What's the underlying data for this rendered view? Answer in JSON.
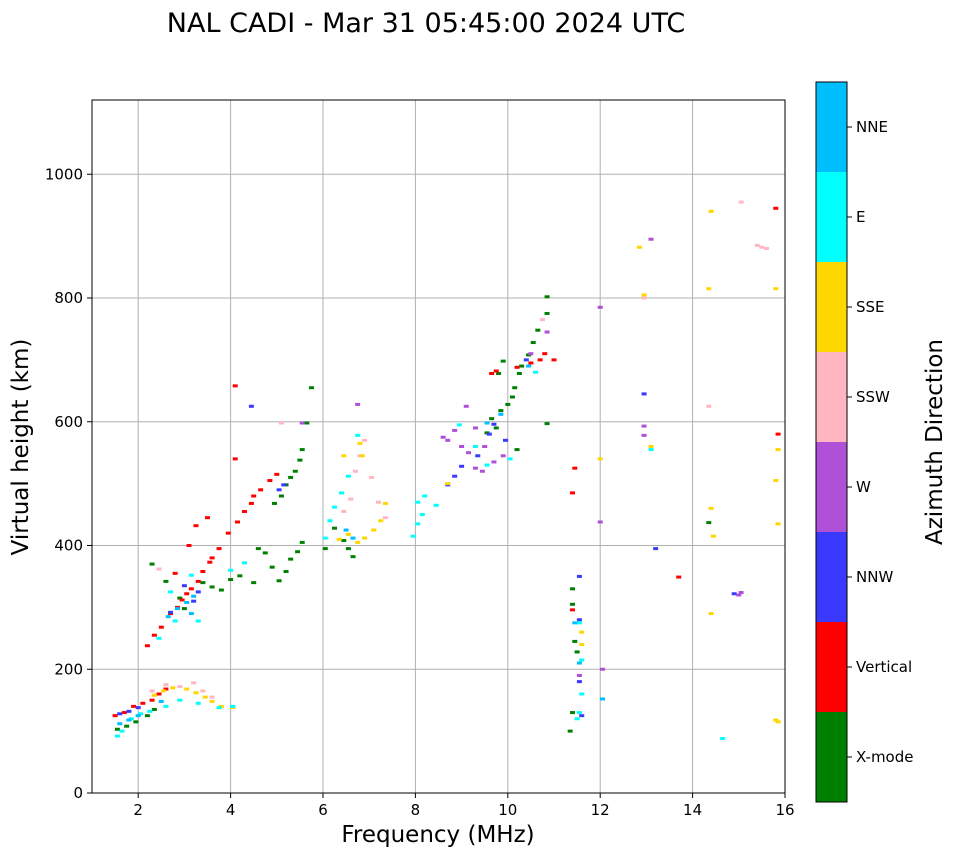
{
  "chart_data": {
    "type": "scatter",
    "title": "NAL CADI - Mar 31 05:45:00 2024 UTC",
    "xlabel": "Frequency (MHz)",
    "ylabel": "Virtual height (km)",
    "xlim": [
      1,
      16
    ],
    "ylim": [
      0,
      1120
    ],
    "xticks": [
      2,
      4,
      6,
      8,
      10,
      12,
      14,
      16
    ],
    "yticks": [
      0,
      200,
      400,
      600,
      800,
      1000
    ],
    "grid": true,
    "colorbar": {
      "label": "Azimuth Direction",
      "categories": [
        "X-mode",
        "Vertical",
        "NNW",
        "W",
        "SSW",
        "SSE",
        "E",
        "NNE"
      ],
      "colors": [
        "#008000",
        "#ff0000",
        "#3a3aff",
        "#b050d8",
        "#ffb6c1",
        "#ffd700",
        "#00ffff",
        "#00bfff"
      ]
    },
    "series": [
      {
        "name": "X-mode",
        "points": [
          [
            1.55,
            103
          ],
          [
            1.75,
            108
          ],
          [
            1.95,
            115
          ],
          [
            2.2,
            125
          ],
          [
            2.35,
            135
          ],
          [
            2.3,
            370
          ],
          [
            2.6,
            342
          ],
          [
            2.9,
            315
          ],
          [
            3.0,
            298
          ],
          [
            3.4,
            340
          ],
          [
            3.6,
            333
          ],
          [
            3.8,
            328
          ],
          [
            4.0,
            345
          ],
          [
            4.2,
            351
          ],
          [
            4.5,
            340
          ],
          [
            4.6,
            395
          ],
          [
            4.75,
            388
          ],
          [
            4.9,
            365
          ],
          [
            5.05,
            343
          ],
          [
            5.2,
            358
          ],
          [
            5.3,
            378
          ],
          [
            5.45,
            390
          ],
          [
            5.55,
            405
          ],
          [
            4.95,
            468
          ],
          [
            5.1,
            480
          ],
          [
            5.2,
            498
          ],
          [
            5.3,
            510
          ],
          [
            5.4,
            520
          ],
          [
            5.5,
            538
          ],
          [
            5.55,
            555
          ],
          [
            5.65,
            598
          ],
          [
            5.75,
            655
          ],
          [
            6.05,
            395
          ],
          [
            6.25,
            428
          ],
          [
            6.45,
            408
          ],
          [
            6.55,
            395
          ],
          [
            6.65,
            382
          ],
          [
            9.55,
            582
          ],
          [
            9.65,
            605
          ],
          [
            9.75,
            590
          ],
          [
            9.85,
            618
          ],
          [
            10.0,
            628
          ],
          [
            10.1,
            640
          ],
          [
            10.15,
            655
          ],
          [
            10.25,
            678
          ],
          [
            10.3,
            690
          ],
          [
            10.45,
            708
          ],
          [
            10.55,
            728
          ],
          [
            10.65,
            748
          ],
          [
            10.85,
            775
          ],
          [
            10.85,
            802
          ],
          [
            9.8,
            678
          ],
          [
            9.9,
            698
          ],
          [
            10.2,
            555
          ],
          [
            10.85,
            597
          ],
          [
            11.4,
            305
          ],
          [
            11.45,
            245
          ],
          [
            11.5,
            228
          ],
          [
            11.4,
            130
          ],
          [
            11.35,
            100
          ],
          [
            11.4,
            330
          ],
          [
            14.35,
            437
          ]
        ]
      },
      {
        "name": "Vertical",
        "points": [
          [
            1.5,
            125
          ],
          [
            1.7,
            130
          ],
          [
            1.9,
            140
          ],
          [
            2.1,
            145
          ],
          [
            2.3,
            150
          ],
          [
            2.45,
            160
          ],
          [
            2.6,
            168
          ],
          [
            2.2,
            238
          ],
          [
            2.35,
            255
          ],
          [
            2.5,
            268
          ],
          [
            2.7,
            290
          ],
          [
            2.85,
            300
          ],
          [
            2.95,
            312
          ],
          [
            3.05,
            322
          ],
          [
            3.15,
            330
          ],
          [
            3.3,
            342
          ],
          [
            3.4,
            358
          ],
          [
            3.55,
            373
          ],
          [
            3.6,
            380
          ],
          [
            3.75,
            395
          ],
          [
            3.95,
            420
          ],
          [
            4.15,
            438
          ],
          [
            4.3,
            455
          ],
          [
            4.45,
            468
          ],
          [
            4.5,
            480
          ],
          [
            4.65,
            490
          ],
          [
            4.85,
            505
          ],
          [
            5.0,
            515
          ],
          [
            4.1,
            540
          ],
          [
            4.1,
            658
          ],
          [
            3.25,
            432
          ],
          [
            3.5,
            445
          ],
          [
            3.1,
            400
          ],
          [
            2.8,
            355
          ],
          [
            9.65,
            678
          ],
          [
            9.75,
            682
          ],
          [
            10.2,
            688
          ],
          [
            10.5,
            695
          ],
          [
            10.7,
            700
          ],
          [
            10.8,
            710
          ],
          [
            11.0,
            700
          ],
          [
            11.4,
            485
          ],
          [
            11.45,
            525
          ],
          [
            11.4,
            296
          ],
          [
            13.7,
            349
          ],
          [
            15.8,
            945
          ],
          [
            15.85,
            580
          ]
        ]
      },
      {
        "name": "NNW",
        "points": [
          [
            1.6,
            128
          ],
          [
            1.8,
            132
          ],
          [
            2.0,
            138
          ],
          [
            2.7,
            292
          ],
          [
            3.0,
            335
          ],
          [
            3.2,
            310
          ],
          [
            3.3,
            325
          ],
          [
            5.05,
            490
          ],
          [
            5.15,
            498
          ],
          [
            8.7,
            498
          ],
          [
            8.85,
            512
          ],
          [
            9.0,
            528
          ],
          [
            9.35,
            545
          ],
          [
            9.6,
            580
          ],
          [
            9.7,
            596
          ],
          [
            9.95,
            570
          ],
          [
            10.4,
            700
          ],
          [
            11.55,
            350
          ],
          [
            11.55,
            280
          ],
          [
            11.55,
            180
          ],
          [
            11.6,
            125
          ],
          [
            12.95,
            645
          ],
          [
            13.2,
            395
          ],
          [
            14.9,
            322
          ],
          [
            4.45,
            625
          ]
        ]
      },
      {
        "name": "W",
        "points": [
          [
            8.7,
            570
          ],
          [
            8.85,
            586
          ],
          [
            9.0,
            560
          ],
          [
            9.15,
            550
          ],
          [
            9.3,
            525
          ],
          [
            9.45,
            520
          ],
          [
            9.1,
            625
          ],
          [
            8.6,
            575
          ],
          [
            9.3,
            590
          ],
          [
            9.5,
            560
          ],
          [
            9.7,
            535
          ],
          [
            9.9,
            545
          ],
          [
            10.5,
            710
          ],
          [
            10.85,
            745
          ],
          [
            11.55,
            190
          ],
          [
            12.0,
            438
          ],
          [
            12.0,
            785
          ],
          [
            12.05,
            200
          ],
          [
            12.95,
            578
          ],
          [
            12.95,
            593
          ],
          [
            13.1,
            895
          ],
          [
            15.0,
            320
          ],
          [
            15.05,
            324
          ],
          [
            6.75,
            628
          ],
          [
            5.55,
            598
          ]
        ]
      },
      {
        "name": "SSW",
        "points": [
          [
            2.3,
            165
          ],
          [
            2.6,
            175
          ],
          [
            2.9,
            172
          ],
          [
            3.2,
            178
          ],
          [
            3.4,
            165
          ],
          [
            3.6,
            155
          ],
          [
            2.45,
            362
          ],
          [
            6.45,
            455
          ],
          [
            6.6,
            475
          ],
          [
            6.7,
            520
          ],
          [
            6.8,
            545
          ],
          [
            6.9,
            570
          ],
          [
            7.05,
            510
          ],
          [
            7.2,
            470
          ],
          [
            7.35,
            445
          ],
          [
            5.1,
            598
          ],
          [
            10.75,
            765
          ],
          [
            12.95,
            800
          ],
          [
            14.35,
            625
          ],
          [
            15.4,
            885
          ],
          [
            15.6,
            880
          ],
          [
            15.5,
            882
          ],
          [
            15.05,
            955
          ]
        ]
      },
      {
        "name": "SSE",
        "points": [
          [
            2.35,
            158
          ],
          [
            2.55,
            165
          ],
          [
            2.75,
            170
          ],
          [
            3.05,
            168
          ],
          [
            3.25,
            162
          ],
          [
            3.45,
            155
          ],
          [
            3.6,
            148
          ],
          [
            3.8,
            140
          ],
          [
            4.05,
            138
          ],
          [
            6.35,
            410
          ],
          [
            6.55,
            418
          ],
          [
            6.75,
            405
          ],
          [
            6.9,
            412
          ],
          [
            7.1,
            425
          ],
          [
            7.25,
            440
          ],
          [
            7.35,
            468
          ],
          [
            6.8,
            565
          ],
          [
            6.85,
            545
          ],
          [
            6.45,
            545
          ],
          [
            8.7,
            500
          ],
          [
            12.0,
            540
          ],
          [
            12.85,
            882
          ],
          [
            12.95,
            805
          ],
          [
            14.35,
            815
          ],
          [
            14.4,
            940
          ],
          [
            14.4,
            460
          ],
          [
            14.45,
            415
          ],
          [
            14.4,
            290
          ],
          [
            15.8,
            815
          ],
          [
            15.85,
            555
          ],
          [
            15.8,
            505
          ],
          [
            15.85,
            435
          ],
          [
            15.8,
            118
          ],
          [
            15.85,
            115
          ],
          [
            13.1,
            560
          ],
          [
            11.6,
            260
          ],
          [
            11.6,
            240
          ]
        ]
      },
      {
        "name": "E",
        "points": [
          [
            1.55,
            92
          ],
          [
            1.65,
            100
          ],
          [
            1.85,
            120
          ],
          [
            2.05,
            128
          ],
          [
            2.25,
            132
          ],
          [
            2.6,
            140
          ],
          [
            2.9,
            150
          ],
          [
            3.3,
            145
          ],
          [
            3.75,
            138
          ],
          [
            4.05,
            140
          ],
          [
            2.45,
            250
          ],
          [
            2.8,
            278
          ],
          [
            3.3,
            278
          ],
          [
            2.7,
            325
          ],
          [
            3.15,
            352
          ],
          [
            4.0,
            360
          ],
          [
            4.3,
            372
          ],
          [
            6.05,
            412
          ],
          [
            6.15,
            440
          ],
          [
            6.25,
            462
          ],
          [
            6.4,
            485
          ],
          [
            6.55,
            512
          ],
          [
            6.75,
            578
          ],
          [
            7.95,
            415
          ],
          [
            8.05,
            435
          ],
          [
            8.15,
            450
          ],
          [
            8.05,
            470
          ],
          [
            8.2,
            480
          ],
          [
            8.45,
            465
          ],
          [
            8.95,
            595
          ],
          [
            9.3,
            560
          ],
          [
            9.55,
            530
          ],
          [
            10.05,
            540
          ],
          [
            10.6,
            680
          ],
          [
            11.55,
            275
          ],
          [
            11.6,
            215
          ],
          [
            11.6,
            160
          ],
          [
            11.55,
            130
          ],
          [
            11.5,
            120
          ],
          [
            13.1,
            555
          ],
          [
            14.65,
            88
          ]
        ]
      },
      {
        "name": "NNE",
        "points": [
          [
            1.6,
            112
          ],
          [
            1.8,
            118
          ],
          [
            2.0,
            125
          ],
          [
            2.5,
            148
          ],
          [
            2.65,
            285
          ],
          [
            2.85,
            298
          ],
          [
            3.05,
            308
          ],
          [
            3.2,
            318
          ],
          [
            3.15,
            290
          ],
          [
            6.5,
            425
          ],
          [
            6.65,
            412
          ],
          [
            9.55,
            598
          ],
          [
            9.85,
            612
          ],
          [
            10.45,
            690
          ],
          [
            11.45,
            275
          ],
          [
            11.55,
            210
          ],
          [
            12.05,
            152
          ]
        ]
      }
    ]
  }
}
